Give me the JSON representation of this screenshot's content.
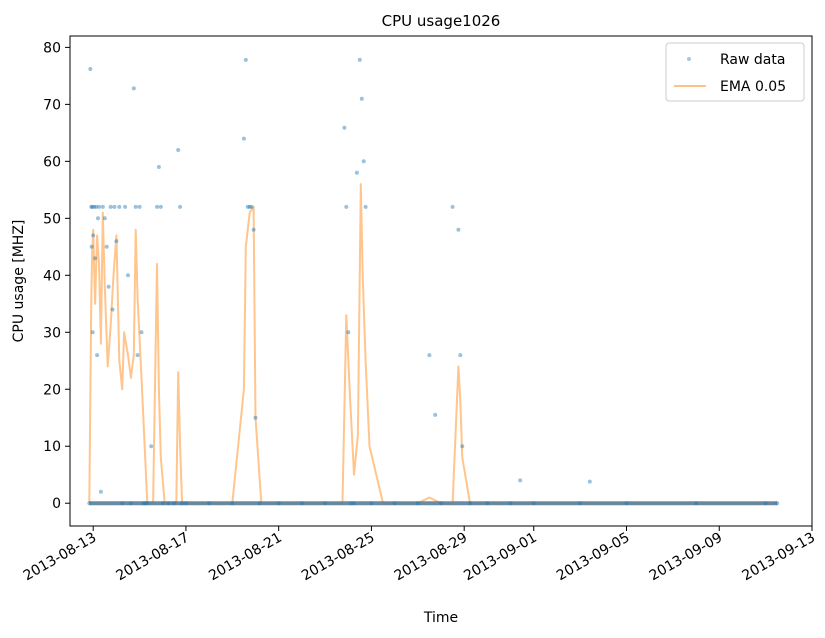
{
  "chart_data": {
    "type": "line",
    "title": "CPU usage1026",
    "xlabel": "Time",
    "ylabel": "CPU usage [MHZ]",
    "x_range": [
      "2013-08-12",
      "2013-09-13"
    ],
    "ylim": [
      -4,
      82
    ],
    "y_ticks": [
      0,
      10,
      20,
      30,
      40,
      50,
      60,
      70,
      80
    ],
    "x_ticks": [
      "2013-08-13",
      "2013-08-17",
      "2013-08-21",
      "2013-08-25",
      "2013-08-29",
      "2013-09-01",
      "2013-09-05",
      "2013-09-09",
      "2013-09-13"
    ],
    "grid": false,
    "legend_position": "top-right",
    "series": [
      {
        "name": "Raw data",
        "style": "scatter",
        "color": "#1f77b4",
        "x": [
          "2013-08-12T20:00",
          "2013-08-12T21:00",
          "2013-08-12T22:00",
          "2013-08-12T22:30",
          "2013-08-12T23:00",
          "2013-08-12T23:30",
          "2013-08-13T00:00",
          "2013-08-13T01:00",
          "2013-08-13T02:00",
          "2013-08-13T03:00",
          "2013-08-13T04:00",
          "2013-08-13T05:00",
          "2013-08-13T06:00",
          "2013-08-13T08:00",
          "2013-08-13T10:00",
          "2013-08-13T12:00",
          "2013-08-13T14:00",
          "2013-08-13T16:00",
          "2013-08-13T18:00",
          "2013-08-13T20:00",
          "2013-08-13T22:00",
          "2013-08-14T00:00",
          "2013-08-14T03:00",
          "2013-08-14T06:00",
          "2013-08-14T09:00",
          "2013-08-14T12:00",
          "2013-08-14T15:00",
          "2013-08-14T18:00",
          "2013-08-14T20:00",
          "2013-08-14T22:00",
          "2013-08-15T00:00",
          "2013-08-15T02:00",
          "2013-08-15T04:00",
          "2013-08-15T06:00",
          "2013-08-15T08:00",
          "2013-08-15T12:00",
          "2013-08-15T18:00",
          "2013-08-15T20:00",
          "2013-08-15T22:00",
          "2013-08-16T00:00",
          "2013-08-16T06:00",
          "2013-08-16T12:00",
          "2013-08-16T16:00",
          "2013-08-16T18:00",
          "2013-08-16T20:00",
          "2013-08-17T00:00",
          "2013-08-18T00:00",
          "2013-08-19T00:00",
          "2013-08-19T12:00",
          "2013-08-19T14:00",
          "2013-08-19T16:00",
          "2013-08-19T18:00",
          "2013-08-19T20:00",
          "2013-08-19T22:00",
          "2013-08-20T00:00",
          "2013-08-20T04:00",
          "2013-08-21T00:00",
          "2013-08-22T00:00",
          "2013-08-23T00:00",
          "2013-08-23T20:00",
          "2013-08-23T22:00",
          "2013-08-24T00:00",
          "2013-08-24T03:00",
          "2013-08-24T06:00",
          "2013-08-24T09:00",
          "2013-08-24T12:00",
          "2013-08-24T14:00",
          "2013-08-24T16:00",
          "2013-08-24T18:00",
          "2013-08-25T00:00",
          "2013-08-26T00:00",
          "2013-08-27T00:00",
          "2013-08-27T12:00",
          "2013-08-27T18:00",
          "2013-08-28T00:00",
          "2013-08-28T12:00",
          "2013-08-28T18:00",
          "2013-08-28T20:00",
          "2013-08-28T22:00",
          "2013-08-29T06:00",
          "2013-08-30T00:00",
          "2013-08-31T00:00",
          "2013-08-31T10:00",
          "2013-09-01T00:00",
          "2013-09-03T00:00",
          "2013-09-03T10:00",
          "2013-09-05T00:00",
          "2013-09-08T00:00",
          "2013-09-11T00:00",
          "2013-09-11T12:00"
        ],
        "y": [
          0,
          76.2,
          52,
          45,
          52,
          30,
          47,
          52,
          43,
          52,
          26,
          50,
          52,
          2,
          52,
          50,
          45,
          38,
          52,
          34,
          52,
          46,
          52,
          0,
          52,
          40,
          0,
          72.8,
          52,
          26,
          52,
          30,
          0,
          0,
          0,
          10,
          52,
          59,
          52,
          0,
          0,
          0,
          62,
          52,
          0,
          0,
          0,
          0,
          64,
          77.8,
          52,
          52,
          52,
          48,
          15,
          0,
          0,
          0,
          0,
          65.9,
          52,
          30,
          0,
          0,
          58,
          77.8,
          71,
          60,
          52,
          0,
          0,
          0,
          26,
          15.5,
          0,
          52,
          48,
          26,
          10,
          0,
          0,
          0,
          4,
          0,
          0,
          3.8,
          0,
          0,
          0,
          0
        ]
      },
      {
        "name": "EMA 0.05",
        "style": "line",
        "color": "#ffbb78",
        "x": [
          "2013-08-12T20:00",
          "2013-08-12T22:00",
          "2013-08-12T23:00",
          "2013-08-13T00:00",
          "2013-08-13T02:00",
          "2013-08-13T04:00",
          "2013-08-13T06:00",
          "2013-08-13T08:00",
          "2013-08-13T10:00",
          "2013-08-13T12:00",
          "2013-08-13T15:00",
          "2013-08-13T18:00",
          "2013-08-13T21:00",
          "2013-08-14T00:00",
          "2013-08-14T03:00",
          "2013-08-14T06:00",
          "2013-08-14T08:00",
          "2013-08-14T12:00",
          "2013-08-14T15:00",
          "2013-08-14T18:00",
          "2013-08-14T20:00",
          "2013-08-14T22:00",
          "2013-08-15T02:00",
          "2013-08-15T08:00",
          "2013-08-15T14:00",
          "2013-08-15T18:00",
          "2013-08-15T20:00",
          "2013-08-15T22:00",
          "2013-08-16T02:00",
          "2013-08-16T08:00",
          "2013-08-16T14:00",
          "2013-08-16T16:00",
          "2013-08-16T18:00",
          "2013-08-16T20:00",
          "2013-08-17T00:00",
          "2013-08-18T00:00",
          "2013-08-19T00:00",
          "2013-08-19T12:00",
          "2013-08-19T14:00",
          "2013-08-19T18:00",
          "2013-08-19T22:00",
          "2013-08-20T00:00",
          "2013-08-20T06:00",
          "2013-08-21T00:00",
          "2013-08-23T00:00",
          "2013-08-23T18:00",
          "2013-08-23T22:00",
          "2013-08-24T02:00",
          "2013-08-24T06:00",
          "2013-08-24T10:00",
          "2013-08-24T13:00",
          "2013-08-24T15:00",
          "2013-08-24T18:00",
          "2013-08-24T22:00",
          "2013-08-25T12:00",
          "2013-08-27T00:00",
          "2013-08-27T12:00",
          "2013-08-27T18:00",
          "2013-08-28T00:00",
          "2013-08-28T12:00",
          "2013-08-28T18:00",
          "2013-08-28T20:00",
          "2013-08-28T22:00",
          "2013-08-29T06:00",
          "2013-08-30T00:00",
          "2013-09-11T12:00"
        ],
        "y": [
          0,
          36,
          44,
          48,
          35,
          47,
          42,
          28,
          51,
          38,
          24,
          31,
          40,
          47,
          25,
          20,
          30,
          26,
          22,
          26,
          48,
          36,
          22,
          0,
          0,
          42,
          20,
          8,
          0,
          0,
          0,
          23,
          10,
          0,
          0,
          0,
          0,
          20,
          45,
          51,
          52,
          15,
          0,
          0,
          0,
          0,
          33,
          18,
          5,
          12,
          56,
          40,
          25,
          10,
          0,
          0,
          1,
          0.5,
          0,
          0,
          24,
          18,
          8,
          0,
          0,
          0
        ]
      }
    ]
  }
}
